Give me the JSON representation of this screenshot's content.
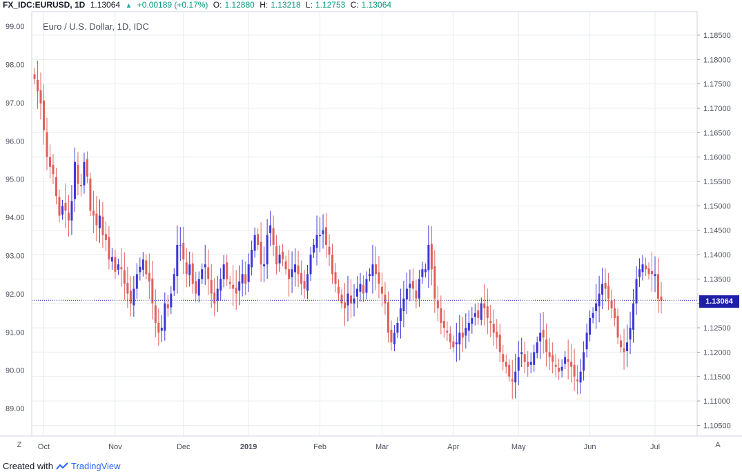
{
  "header": {
    "symbol": "FX_IDC:EURUSD, 1D",
    "last": "1.13064",
    "change": "+0.00189 (+0.17%)",
    "o_label": "O:",
    "o_value": "1.12880",
    "h_label": "H:",
    "h_value": "1.13218",
    "l_label": "L:",
    "l_value": "1.12753",
    "c_label": "C:",
    "c_value": "1.13064"
  },
  "caption": "Euro / U.S. Dollar, 1D, IDC",
  "price_tag": "1.13064",
  "buttons": {
    "left": "Z",
    "right": "A"
  },
  "footer": {
    "created": "Created with",
    "brand": "TradingView"
  },
  "colors": {
    "up": "#3b36d6",
    "down": "#e0605a",
    "grid": "#e8ebef",
    "last_line": "#1e1ea8",
    "tag": "#1e1ea8"
  },
  "chart_data": {
    "type": "candlestick",
    "title": "",
    "left_axis": {
      "ticks": [
        "99.00",
        "98.00",
        "97.00",
        "96.00",
        "95.00",
        "94.00",
        "93.00",
        "92.00",
        "91.00",
        "90.00",
        "89.00"
      ],
      "range": [
        88.28,
        99.38
      ]
    },
    "right_axis": {
      "ticks": [
        "1.18500",
        "1.18000",
        "1.17500",
        "1.17000",
        "1.16500",
        "1.16000",
        "1.15500",
        "1.15000",
        "1.14500",
        "1.14000",
        "1.13500",
        "1.13000",
        "1.12500",
        "1.12000",
        "1.11500",
        "1.11000",
        "1.10500"
      ],
      "range": [
        1.1028,
        1.1898
      ]
    },
    "x_ticks": [
      {
        "label": "Oct",
        "index": 3
      },
      {
        "label": "Nov",
        "index": 26
      },
      {
        "label": "Dec",
        "index": 48
      },
      {
        "label": "2019",
        "index": 69,
        "bold": true
      },
      {
        "label": "Feb",
        "index": 92
      },
      {
        "label": "Mar",
        "index": 112
      },
      {
        "label": "Apr",
        "index": 135
      },
      {
        "label": "May",
        "index": 156
      },
      {
        "label": "Jun",
        "index": 179
      },
      {
        "label": "Jul",
        "index": 200
      }
    ],
    "grid": true,
    "last_price": 1.13064,
    "closes": [
      1.176,
      1.1735,
      1.171,
      1.1655,
      1.16,
      1.158,
      1.1565,
      1.152,
      1.148,
      1.15,
      1.149,
      1.147,
      1.151,
      1.159,
      1.1545,
      1.154,
      1.159,
      1.156,
      1.149,
      1.148,
      1.146,
      1.148,
      1.144,
      1.143,
      1.139,
      1.1395,
      1.1365,
      1.138,
      1.137,
      1.134,
      1.132,
      1.13,
      1.133,
      1.136,
      1.1375,
      1.139,
      1.136,
      1.1345,
      1.13,
      1.126,
      1.124,
      1.125,
      1.13,
      1.129,
      1.132,
      1.136,
      1.142,
      1.142,
      1.139,
      1.136,
      1.138,
      1.134,
      1.132,
      1.135,
      1.137,
      1.138,
      1.135,
      1.132,
      1.13,
      1.133,
      1.135,
      1.138,
      1.135,
      1.134,
      1.133,
      1.132,
      1.1345,
      1.136,
      1.134,
      1.138,
      1.141,
      1.144,
      1.142,
      1.138,
      1.138,
      1.144,
      1.146,
      1.142,
      1.138,
      1.14,
      1.139,
      1.137,
      1.135,
      1.137,
      1.138,
      1.136,
      1.134,
      1.133,
      1.136,
      1.14,
      1.142,
      1.144,
      1.144,
      1.145,
      1.142,
      1.14,
      1.136,
      1.134,
      1.132,
      1.13,
      1.129,
      1.132,
      1.13,
      1.131,
      1.133,
      1.134,
      1.132,
      1.135,
      1.136,
      1.138,
      1.136,
      1.134,
      1.132,
      1.13,
      1.124,
      1.122,
      1.124,
      1.126,
      1.129,
      1.131,
      1.133,
      1.134,
      1.133,
      1.131,
      1.135,
      1.137,
      1.137,
      1.142,
      1.137,
      1.131,
      1.129,
      1.126,
      1.125,
      1.124,
      1.122,
      1.121,
      1.122,
      1.124,
      1.123,
      1.125,
      1.126,
      1.127,
      1.128,
      1.127,
      1.13,
      1.129,
      1.127,
      1.126,
      1.124,
      1.123,
      1.12,
      1.118,
      1.117,
      1.115,
      1.114,
      1.116,
      1.119,
      1.12,
      1.118,
      1.117,
      1.118,
      1.12,
      1.122,
      1.124,
      1.123,
      1.12,
      1.119,
      1.118,
      1.117,
      1.116,
      1.117,
      1.119,
      1.118,
      1.117,
      1.115,
      1.114,
      1.116,
      1.12,
      1.124,
      1.127,
      1.128,
      1.13,
      1.132,
      1.134,
      1.133,
      1.131,
      1.129,
      1.127,
      1.123,
      1.121,
      1.12,
      1.122,
      1.125,
      1.13,
      1.135,
      1.137,
      1.138,
      1.137,
      1.136,
      1.136,
      1.136,
      1.131,
      1.1306
    ]
  }
}
